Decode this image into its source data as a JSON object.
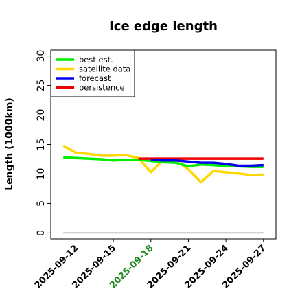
{
  "chart_data": {
    "type": "line",
    "title": "Ice edge length",
    "ylabel": "Length (1000km)",
    "xlabel": "",
    "ylim": [
      -1,
      31
    ],
    "yticks": [
      0,
      5,
      10,
      15,
      20,
      25,
      30
    ],
    "x_dates": [
      "2025-09-11",
      "2025-09-12",
      "2025-09-13",
      "2025-09-14",
      "2025-09-15",
      "2025-09-16",
      "2025-09-17",
      "2025-09-18",
      "2025-09-19",
      "2025-09-20",
      "2025-09-21",
      "2025-09-22",
      "2025-09-23",
      "2025-09-24",
      "2025-09-25",
      "2025-09-26",
      "2025-09-27"
    ],
    "xlim": [
      "2025-09-10",
      "2025-09-28"
    ],
    "xticks": [
      {
        "label": "2025-09-12",
        "date": "2025-09-12",
        "color": "#000000"
      },
      {
        "label": "2025-09-15",
        "date": "2025-09-15",
        "color": "#000000"
      },
      {
        "label": "2025-09-18",
        "date": "2025-09-18",
        "color": "#228b22"
      },
      {
        "label": "2025-09-21",
        "date": "2025-09-21",
        "color": "#000000"
      },
      {
        "label": "2025-09-24",
        "date": "2025-09-24",
        "color": "#000000"
      },
      {
        "label": "2025-09-27",
        "date": "2025-09-27",
        "color": "#000000"
      }
    ],
    "legend_position": "top-left",
    "grid": false,
    "series": [
      {
        "name": "best est.",
        "color": "#00ee00",
        "points": [
          [
            "2025-09-11",
            12.8
          ],
          [
            "2025-09-12",
            12.7
          ],
          [
            "2025-09-13",
            12.6
          ],
          [
            "2025-09-14",
            12.5
          ],
          [
            "2025-09-15",
            12.3
          ],
          [
            "2025-09-16",
            12.4
          ],
          [
            "2025-09-17",
            12.4
          ],
          [
            "2025-09-18",
            12.2
          ],
          [
            "2025-09-19",
            12.0
          ],
          [
            "2025-09-20",
            11.9
          ],
          [
            "2025-09-21",
            11.3
          ],
          [
            "2025-09-22",
            11.6
          ],
          [
            "2025-09-23",
            11.5
          ],
          [
            "2025-09-24",
            11.3
          ],
          [
            "2025-09-25",
            11.3
          ],
          [
            "2025-09-26",
            11.2
          ],
          [
            "2025-09-27",
            11.2
          ]
        ]
      },
      {
        "name": "satellite data",
        "color": "#ffd700",
        "points": [
          [
            "2025-09-11",
            14.8
          ],
          [
            "2025-09-12",
            13.6
          ],
          [
            "2025-09-13",
            13.4
          ],
          [
            "2025-09-14",
            13.1
          ],
          [
            "2025-09-15",
            13.1
          ],
          [
            "2025-09-16",
            13.2
          ],
          [
            "2025-09-17",
            12.7
          ],
          [
            "2025-09-18",
            10.3
          ],
          [
            "2025-09-19",
            12.4
          ],
          [
            "2025-09-20",
            12.2
          ],
          [
            "2025-09-21",
            10.8
          ],
          [
            "2025-09-22",
            8.6
          ],
          [
            "2025-09-23",
            10.5
          ],
          [
            "2025-09-24",
            10.3
          ],
          [
            "2025-09-25",
            10.1
          ],
          [
            "2025-09-26",
            9.8
          ],
          [
            "2025-09-27",
            9.9
          ]
        ]
      },
      {
        "name": "forecast",
        "color": "#0000ee",
        "points": [
          [
            "2025-09-18",
            12.4
          ],
          [
            "2025-09-19",
            12.3
          ],
          [
            "2025-09-20",
            12.3
          ],
          [
            "2025-09-21",
            12.1
          ],
          [
            "2025-09-22",
            11.9
          ],
          [
            "2025-09-23",
            11.9
          ],
          [
            "2025-09-24",
            11.7
          ],
          [
            "2025-09-25",
            11.4
          ],
          [
            "2025-09-26",
            11.4
          ],
          [
            "2025-09-27",
            11.5
          ]
        ]
      },
      {
        "name": "persistence",
        "color": "#ee0000",
        "points": [
          [
            "2025-09-17",
            12.6
          ],
          [
            "2025-09-18",
            12.6
          ],
          [
            "2025-09-19",
            12.6
          ],
          [
            "2025-09-20",
            12.6
          ],
          [
            "2025-09-21",
            12.6
          ],
          [
            "2025-09-22",
            12.6
          ],
          [
            "2025-09-23",
            12.6
          ],
          [
            "2025-09-24",
            12.6
          ],
          [
            "2025-09-25",
            12.6
          ],
          [
            "2025-09-26",
            12.6
          ],
          [
            "2025-09-27",
            12.6
          ]
        ]
      }
    ],
    "baseline": {
      "color": "#808080",
      "points": [
        [
          "2025-09-11",
          0
        ],
        [
          "2025-09-27",
          0
        ]
      ]
    }
  }
}
